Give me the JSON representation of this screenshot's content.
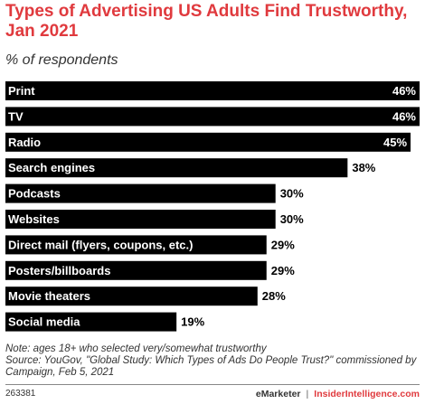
{
  "title": "Types of Advertising US Adults Find Trustworthy, Jan 2021",
  "subtitle": "% of respondents",
  "chart_data": {
    "type": "bar",
    "orientation": "horizontal",
    "categories": [
      "Print",
      "TV",
      "Radio",
      "Search engines",
      "Podcasts",
      "Websites",
      "Direct mail (flyers, coupons, etc.)",
      "Posters/billboards",
      "Movie theaters",
      "Social media"
    ],
    "values": [
      46,
      46,
      45,
      38,
      30,
      30,
      29,
      29,
      28,
      19
    ],
    "labels": [
      "46%",
      "46%",
      "45%",
      "38%",
      "30%",
      "30%",
      "29%",
      "29%",
      "28%",
      "19%"
    ],
    "xlim": [
      0,
      46
    ],
    "grid": false,
    "bar_color": "#000000"
  },
  "note_lines": [
    "Note: ages 18+ who selected very/somewhat trustworthy",
    "Source: YouGov, \"Global Study: Which Types of Ads Do People Trust?\" commissioned by",
    "Campaign, Feb 5, 2021"
  ],
  "footer": {
    "id": "263381",
    "brand_left": "eMarketer",
    "separator": "|",
    "brand_right": "InsiderIntelligence.com"
  },
  "colors": {
    "title": "#e03a3e",
    "bar": "#000000",
    "text": "#222222"
  }
}
